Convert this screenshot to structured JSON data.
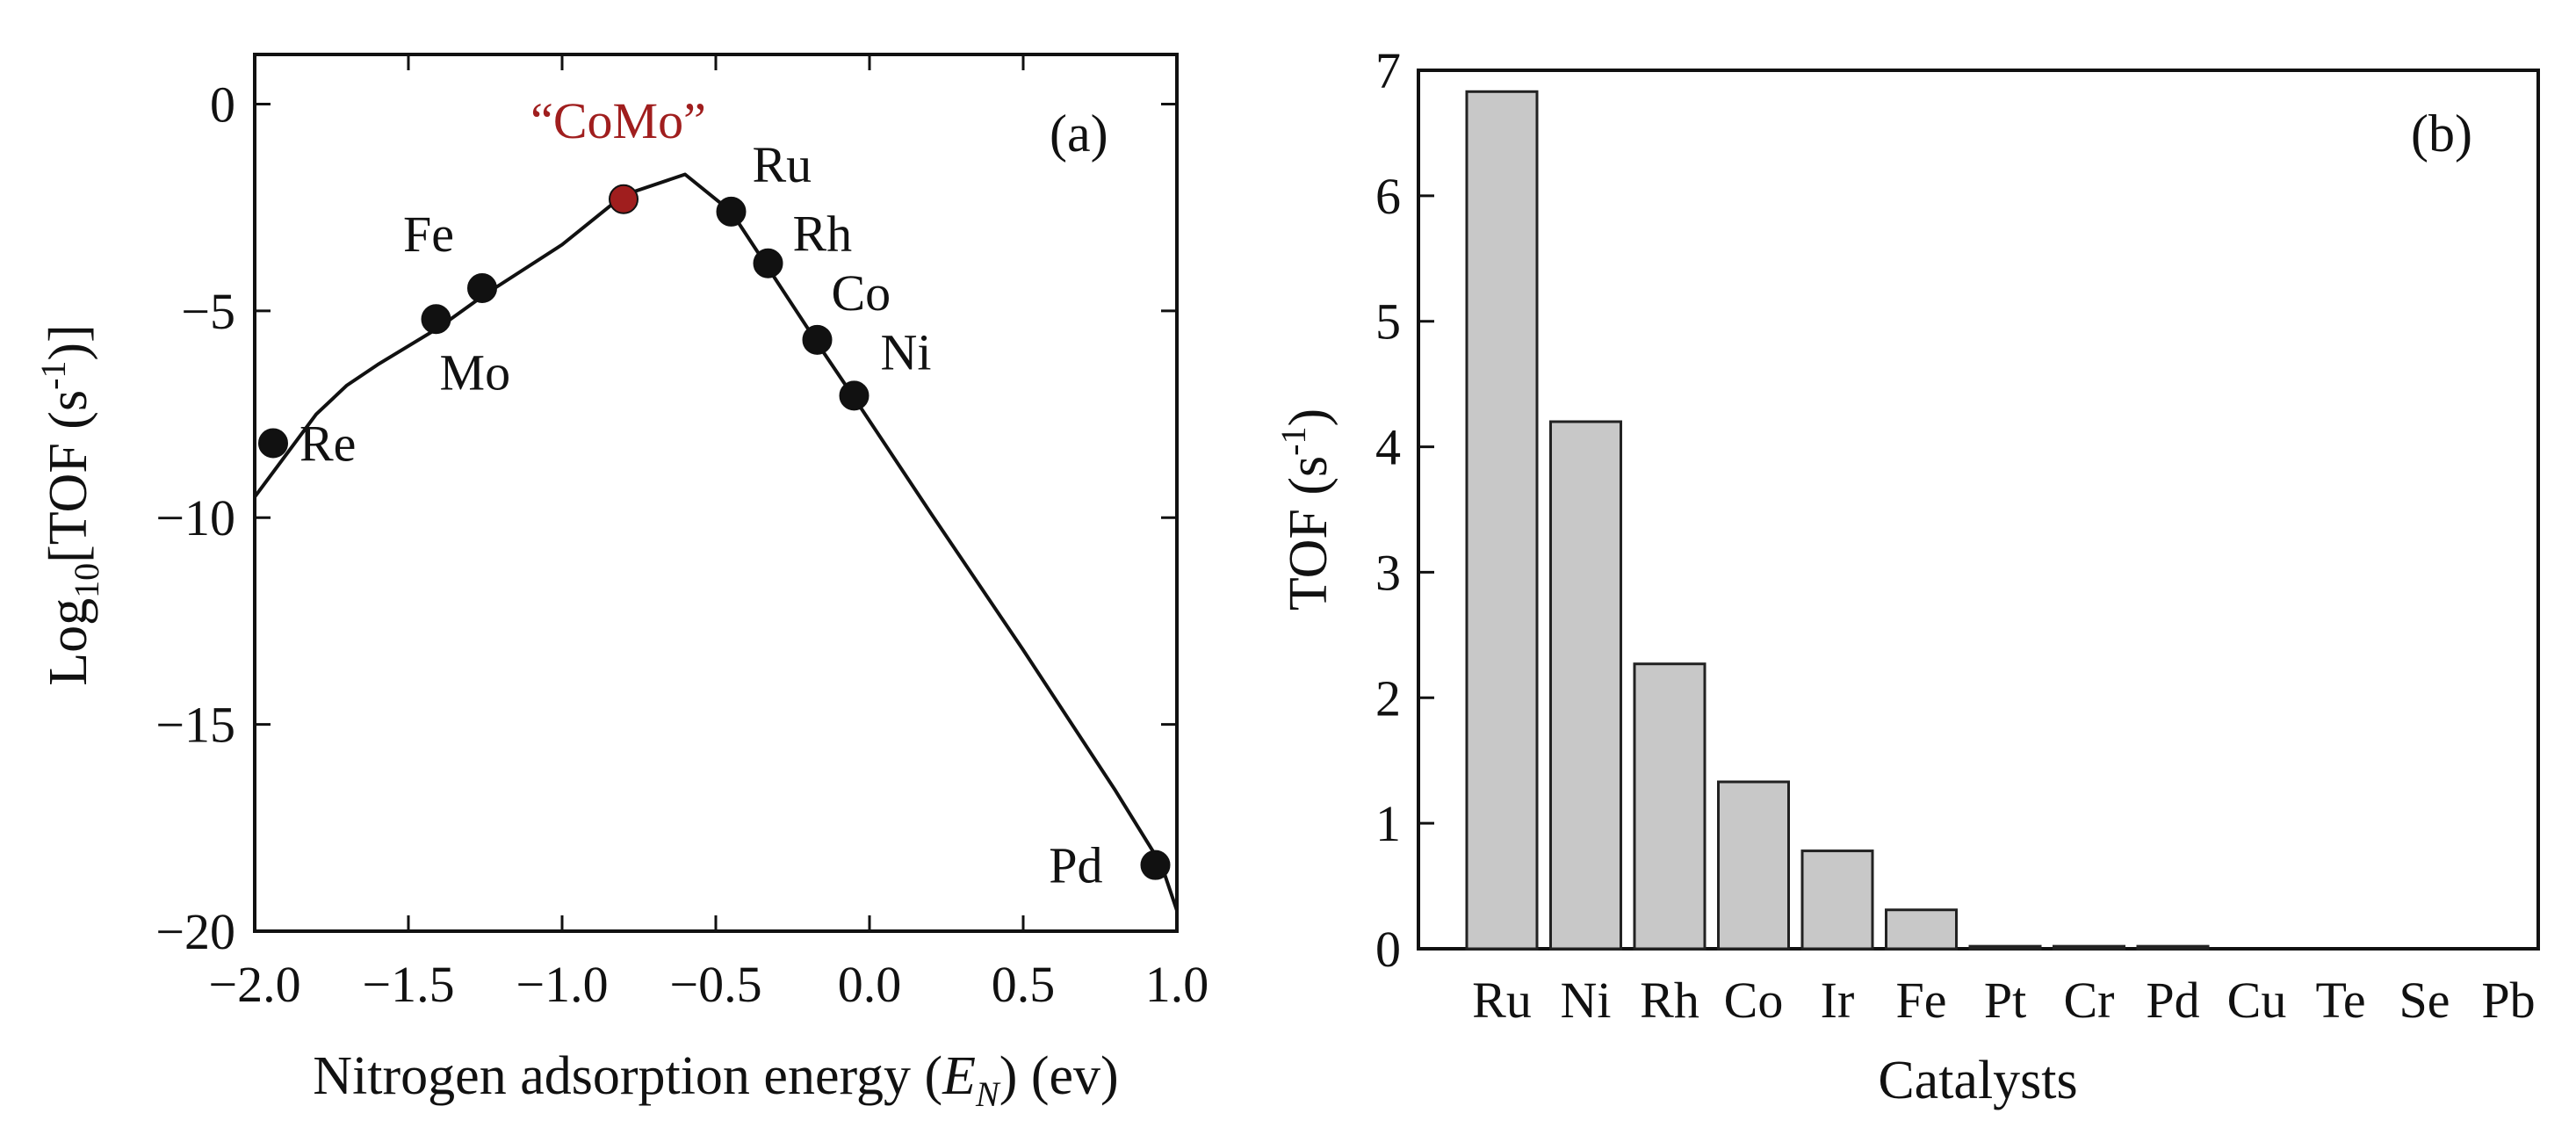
{
  "colors": {
    "line": "#111111",
    "point": "#111111",
    "highlight": "#a01e1e",
    "bar_fill": "#c8c8c8",
    "bar_stroke": "#222222"
  },
  "chart_data": [
    {
      "type": "line",
      "panel_label": "(a)",
      "xlabel_parts": {
        "main": "Nitrogen adsorption energy (",
        "var": "E",
        "sub": "N",
        "tail": ") (ev)"
      },
      "ylabel_parts": {
        "main": "Log",
        "sub": "10",
        "mid": "[TOF (s",
        "sup": "-1",
        "tail": ")]"
      },
      "xlim": [
        -2.0,
        1.0
      ],
      "ylim": [
        -20,
        1.2
      ],
      "xticks": [
        -2.0,
        -1.5,
        -1.0,
        -0.5,
        0.0,
        0.5,
        1.0
      ],
      "xtick_labels": [
        "−2.0",
        "−1.5",
        "−1.0",
        "−0.5",
        "0.0",
        "0.5",
        "1.0"
      ],
      "yticks": [
        0,
        -5,
        -10,
        -15,
        -20
      ],
      "ytick_labels": [
        "0",
        "−5",
        "−10",
        "−15",
        "−20"
      ],
      "curve": {
        "x": [
          -2.0,
          -1.8,
          -1.7,
          -1.6,
          -1.4,
          -1.25,
          -1.0,
          -0.8,
          -0.6,
          -0.5,
          -0.45,
          -0.3,
          -0.15,
          -0.05,
          0.2,
          0.5,
          0.8,
          0.95,
          1.0
        ],
        "y": [
          -9.5,
          -7.5,
          -6.8,
          -6.3,
          -5.4,
          -4.6,
          -3.4,
          -2.2,
          -1.7,
          -2.3,
          -2.6,
          -4.3,
          -6.0,
          -7.1,
          -9.9,
          -13.2,
          -16.6,
          -18.4,
          -19.5
        ]
      },
      "points": [
        {
          "label": "Re",
          "x": -1.94,
          "y": -8.2
        },
        {
          "label": "Mo",
          "x": -1.41,
          "y": -5.2
        },
        {
          "label": "Fe",
          "x": -1.26,
          "y": -4.45
        },
        {
          "label": "“CoMo”",
          "x": -0.8,
          "y": -2.3,
          "highlight": true
        },
        {
          "label": "Ru",
          "x": -0.45,
          "y": -2.6
        },
        {
          "label": "Rh",
          "x": -0.33,
          "y": -3.85
        },
        {
          "label": "Co",
          "x": -0.17,
          "y": -5.7
        },
        {
          "label": "Ni",
          "x": -0.05,
          "y": -7.05
        },
        {
          "label": "Pd",
          "x": 0.93,
          "y": -18.4
        }
      ]
    },
    {
      "type": "bar",
      "panel_label": "(b)",
      "xlabel": "Catalysts",
      "ylabel_parts": {
        "main": "TOF (s",
        "sup": "-1",
        "tail": ")"
      },
      "categories": [
        "Ru",
        "Ni",
        "Rh",
        "Co",
        "Ir",
        "Fe",
        "Pt",
        "Cr",
        "Pd",
        "Cu",
        "Te",
        "Se",
        "Pb"
      ],
      "values": [
        6.83,
        4.2,
        2.27,
        1.33,
        0.78,
        0.31,
        0.02,
        0.02,
        0.02,
        0.0,
        0.0,
        0.0,
        0.0
      ],
      "ylim": [
        0,
        7
      ],
      "yticks": [
        0,
        1,
        2,
        3,
        4,
        5,
        6,
        7
      ],
      "ytick_labels": [
        "0",
        "1",
        "2",
        "3",
        "4",
        "5",
        "6",
        "7"
      ]
    }
  ]
}
